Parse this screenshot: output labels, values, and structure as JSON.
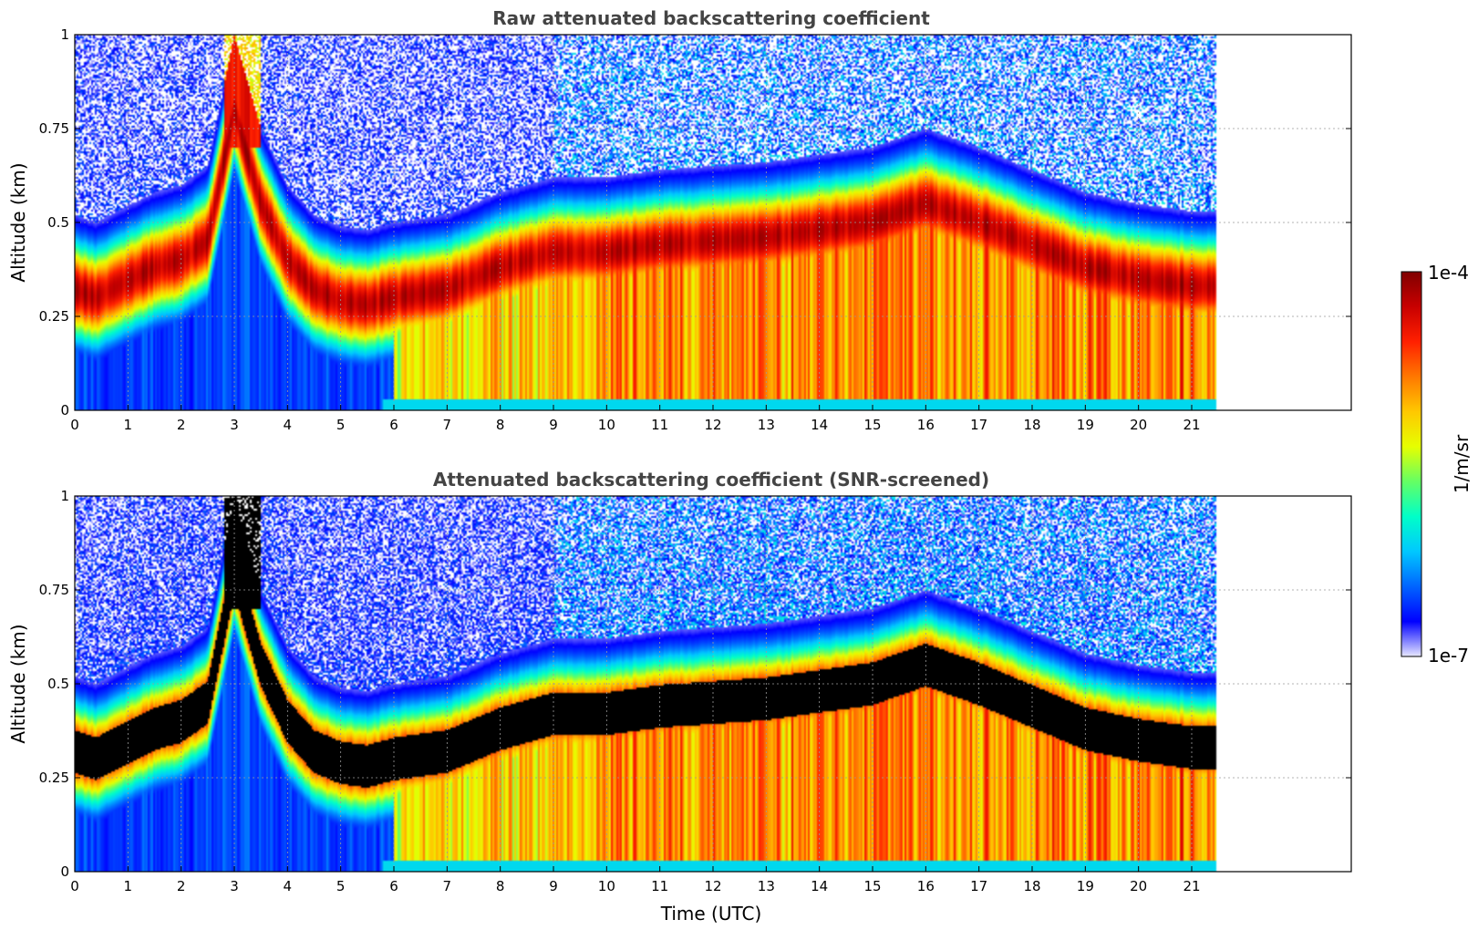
{
  "chart_data": [
    {
      "type": "heatmap",
      "title": "Raw attenuated backscattering coefficient",
      "xlabel": "",
      "ylabel": "Altitude (km)",
      "xlim": [
        0,
        24
      ],
      "ylim": [
        0,
        1
      ],
      "x_ticks": [
        "0",
        "1",
        "2",
        "3",
        "4",
        "5",
        "6",
        "7",
        "8",
        "9",
        "10",
        "11",
        "12",
        "13",
        "14",
        "15",
        "16",
        "17",
        "18",
        "19",
        "20",
        "21"
      ],
      "y_ticks": [
        "0",
        "0.25",
        "0.5",
        "0.75",
        "1"
      ],
      "data_end_time": 21.45,
      "screened": false,
      "grid": true,
      "layer_profile": {
        "time": [
          0,
          0.4,
          0.8,
          1.5,
          2.0,
          2.5,
          3.0,
          3.5,
          4.0,
          4.5,
          5.0,
          5.5,
          6.0,
          7.0,
          8.0,
          9.0,
          10.0,
          11.0,
          12.0,
          13.0,
          14.0,
          15.0,
          16.0,
          17.0,
          18.0,
          19.0,
          20.0,
          21.0,
          21.45
        ],
        "peak_altitude_km": [
          0.32,
          0.3,
          0.33,
          0.38,
          0.4,
          0.45,
          0.8,
          0.55,
          0.4,
          0.32,
          0.29,
          0.28,
          0.3,
          0.32,
          0.38,
          0.42,
          0.42,
          0.44,
          0.45,
          0.46,
          0.48,
          0.5,
          0.55,
          0.5,
          0.44,
          0.38,
          0.35,
          0.33,
          0.33
        ]
      }
    },
    {
      "type": "heatmap",
      "title": "Attenuated backscattering coefficient (SNR-screened)",
      "xlabel": "Time (UTC)",
      "ylabel": "Altitude (km)",
      "xlim": [
        0,
        24
      ],
      "ylim": [
        0,
        1
      ],
      "x_ticks": [
        "0",
        "1",
        "2",
        "3",
        "4",
        "5",
        "6",
        "7",
        "8",
        "9",
        "10",
        "11",
        "12",
        "13",
        "14",
        "15",
        "16",
        "17",
        "18",
        "19",
        "20",
        "21"
      ],
      "y_ticks": [
        "0",
        "0.25",
        "0.5",
        "0.75",
        "1"
      ],
      "data_end_time": 21.45,
      "screened": true,
      "saturation_color": "#000000",
      "grid": true
    }
  ],
  "colorbar": {
    "label": "1/m/sr",
    "max_label": "1e-4",
    "min_label": "1e-7",
    "scale": "log",
    "range": [
      1e-07,
      0.0001
    ],
    "colors": [
      "#e8e8ff",
      "#0000ff",
      "#0064ff",
      "#00c8ff",
      "#00ffc8",
      "#64ff64",
      "#e6ff00",
      "#ffc800",
      "#ff7800",
      "#ff2000",
      "#c80000",
      "#800000"
    ]
  }
}
